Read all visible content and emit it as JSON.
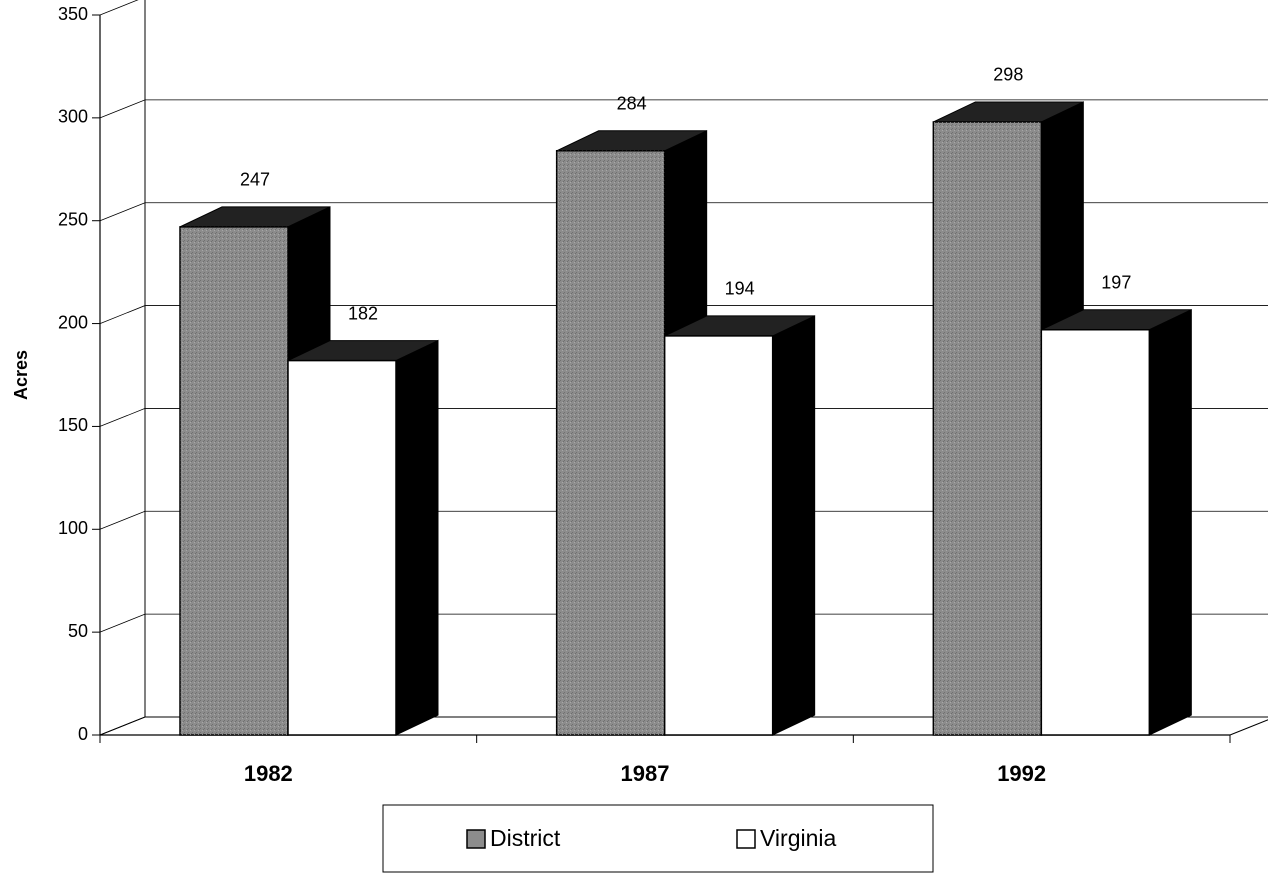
{
  "chart_data": {
    "type": "bar",
    "y_label": "Acres",
    "categories": [
      "1982",
      "1987",
      "1992"
    ],
    "series": [
      {
        "name": "District",
        "color": "#8c8c8c",
        "values": [
          247,
          284,
          298
        ]
      },
      {
        "name": "Virginia",
        "color": "#ffffff",
        "values": [
          182,
          194,
          197
        ]
      }
    ],
    "ylim": [
      0,
      350
    ],
    "yticks": [
      0,
      50,
      100,
      150,
      200,
      250,
      300,
      350
    ],
    "grid": true,
    "legend": "bottom"
  }
}
